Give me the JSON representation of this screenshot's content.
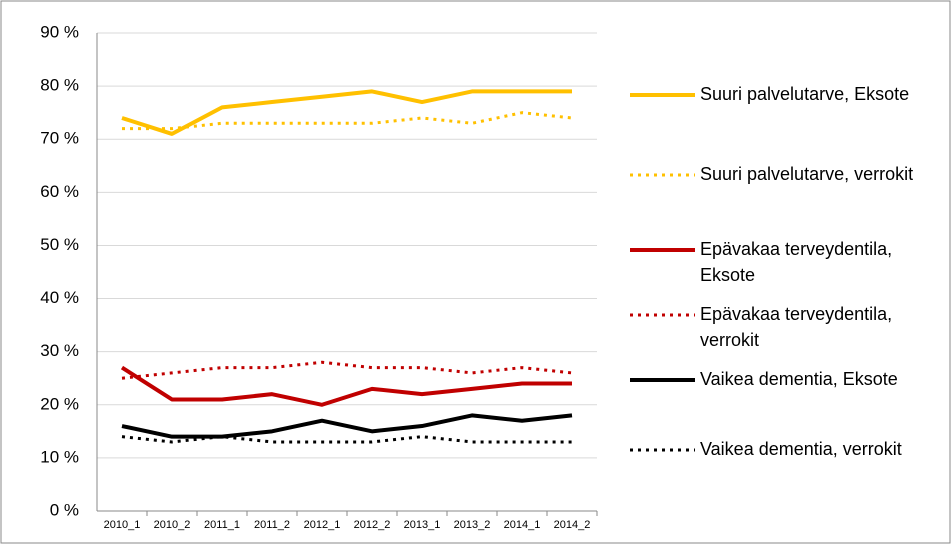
{
  "chart_data": {
    "type": "line",
    "categories": [
      "2010_1",
      "2010_2",
      "2011_1",
      "2011_2",
      "2012_1",
      "2012_2",
      "2013_1",
      "2013_2",
      "2014_1",
      "2014_2"
    ],
    "series": [
      {
        "name": "Suuri palvelutarve, Eksote",
        "color": "#ffc000",
        "style": "solid",
        "values": [
          74,
          71,
          76,
          77,
          78,
          79,
          77,
          79,
          79,
          79
        ]
      },
      {
        "name": "Suuri palvelutarve, verrokit",
        "color": "#ffc000",
        "style": "dotted",
        "values": [
          72,
          72,
          73,
          73,
          73,
          73,
          74,
          73,
          75,
          74
        ]
      },
      {
        "name": "Epävakaa terveydentila, Eksote",
        "color": "#c00000",
        "style": "solid",
        "values": [
          27,
          21,
          21,
          22,
          20,
          23,
          22,
          23,
          24,
          24
        ]
      },
      {
        "name": "Epävakaa terveydentila, verrokit",
        "color": "#c00000",
        "style": "dotted",
        "values": [
          25,
          26,
          27,
          27,
          28,
          27,
          27,
          26,
          27,
          26
        ]
      },
      {
        "name": "Vaikea dementia, Eksote",
        "color": "#000000",
        "style": "solid",
        "values": [
          16,
          14,
          14,
          15,
          17,
          15,
          16,
          18,
          17,
          18
        ]
      },
      {
        "name": "Vaikea dementia, verrokit",
        "color": "#000000",
        "style": "dotted",
        "values": [
          14,
          13,
          14,
          13,
          13,
          13,
          14,
          13,
          13,
          13
        ]
      }
    ],
    "ylim": [
      0,
      90
    ],
    "yticks": [
      {
        "value": 0,
        "label": "0 %"
      },
      {
        "value": 10,
        "label": "10 %"
      },
      {
        "value": 20,
        "label": "20 %"
      },
      {
        "value": 30,
        "label": "30 %"
      },
      {
        "value": 40,
        "label": "40 %"
      },
      {
        "value": 50,
        "label": "50 %"
      },
      {
        "value": 60,
        "label": "60 %"
      },
      {
        "value": 70,
        "label": "70 %"
      },
      {
        "value": 80,
        "label": "80 %"
      },
      {
        "value": 90,
        "label": "90 %"
      }
    ],
    "grid": true,
    "legend": "right"
  }
}
